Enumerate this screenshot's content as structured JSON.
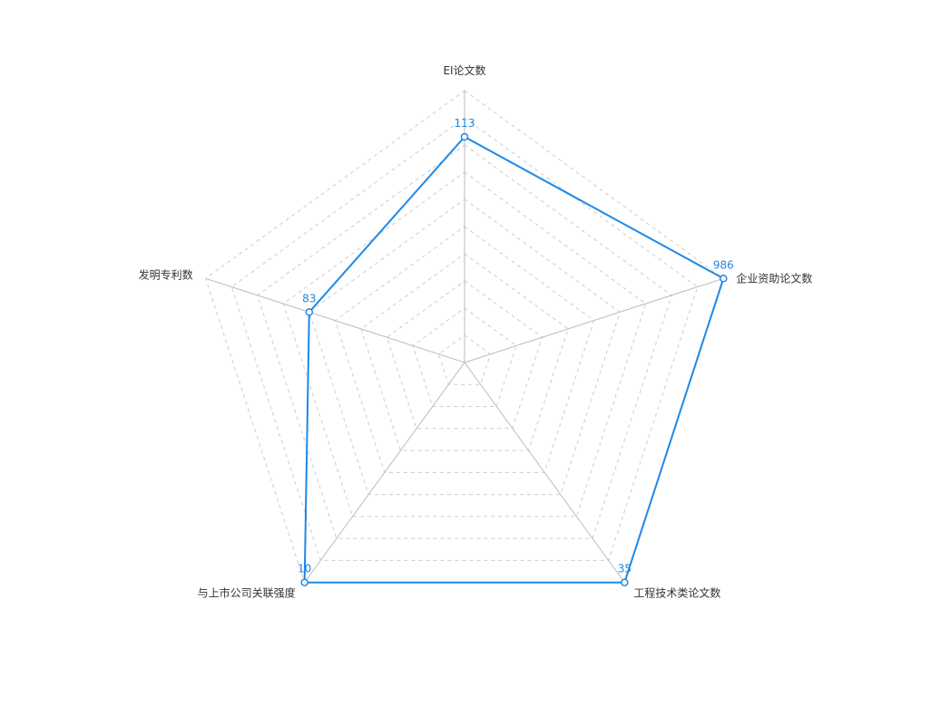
{
  "chart_data": {
    "type": "radar",
    "title": "",
    "indicators": [
      {
        "name": "EI论文数",
        "max": 113
      },
      {
        "name": "企业资助论文数",
        "max": 986
      },
      {
        "name": "工程技术类论文数",
        "max": 35
      },
      {
        "name": "与上市公司关联强度",
        "max": 10
      },
      {
        "name": "发明专利数",
        "max": 83
      }
    ],
    "series": [
      {
        "values": [
          113,
          986,
          35,
          10,
          83
        ],
        "scale": [
          0.83,
          1.0,
          1.0,
          1.0,
          0.6
        ]
      }
    ],
    "split_number": 10,
    "grid_style": "dashed",
    "colors": {
      "series": "#1e88e5",
      "grid": "#cccccc",
      "axis": "#bbbbbb",
      "label": "#333333"
    }
  }
}
